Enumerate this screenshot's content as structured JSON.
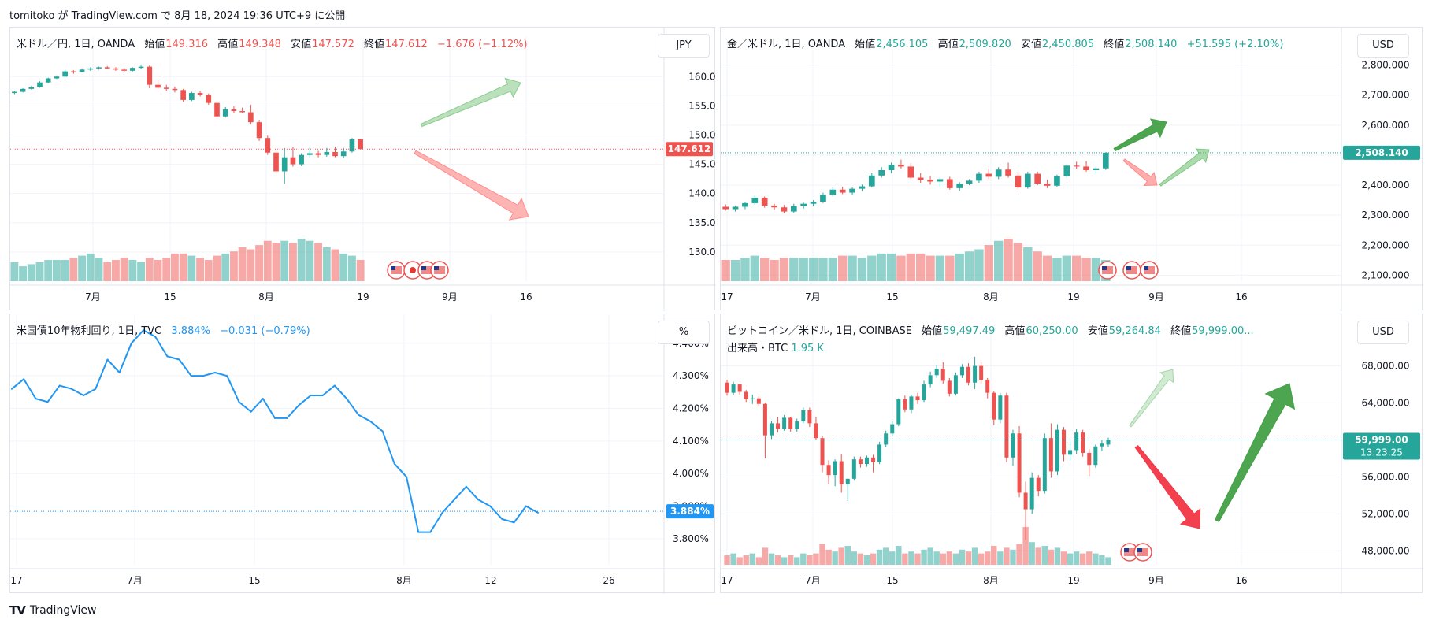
{
  "header": {
    "publish_line": "tomitoko が TradingView.com で 8月 18, 2024 19:36 UTC+9 に公開"
  },
  "footer": {
    "brand": "TradingView"
  },
  "colors": {
    "up": "#26a69a",
    "down": "#ef5350",
    "line": "#2196f3",
    "grid": "#f0f3fa",
    "arrow_green": "#43a047",
    "arrow_red": "#f23645"
  },
  "panels": [
    {
      "id": "usdjpy",
      "legend": {
        "symbol": "米ドル／円, 1日, OANDA",
        "open_label": "始値",
        "open": "149.316",
        "high_label": "高値",
        "high": "149.348",
        "low_label": "安値",
        "low": "147.572",
        "close_label": "終値",
        "close": "147.612",
        "change": "−1.676 (−1.12%)",
        "tone": "down"
      },
      "currency": "JPY",
      "price_badge": "147.612",
      "badge_tone": "down",
      "y_ticks": [
        "160.000",
        "155.000",
        "150.000",
        "145.000",
        "140.000",
        "135.000",
        "130.000"
      ],
      "x_ticks": [
        "7月",
        "15",
        "8月",
        "19",
        "9月",
        "16"
      ]
    },
    {
      "id": "xauusd",
      "legend": {
        "symbol": "金／米ドル, 1日, OANDA",
        "open_label": "始値",
        "open": "2,456.105",
        "high_label": "高値",
        "high": "2,509.820",
        "low_label": "安値",
        "low": "2,450.805",
        "close_label": "終値",
        "close": "2,508.140",
        "change": "+51.595 (+2.10%)",
        "tone": "up"
      },
      "currency": "USD",
      "price_badge": "2,508.140",
      "badge_tone": "up",
      "y_ticks": [
        "2,800.000",
        "2,700.000",
        "2,600.000",
        "2,500.000",
        "2,400.000",
        "2,300.000",
        "2,200.000",
        "2,100.000"
      ],
      "x_ticks": [
        "17",
        "7月",
        "15",
        "8月",
        "19",
        "9月",
        "16"
      ]
    },
    {
      "id": "us10y",
      "legend": {
        "symbol": "米国債10年物利回り, 1日, TVC",
        "value": "3.884%",
        "change": "−0.031 (−0.79%)",
        "tone": "line"
      },
      "currency": "%",
      "price_badge": "3.884%",
      "badge_tone": "line",
      "y_ticks": [
        "4.400%",
        "4.300%",
        "4.200%",
        "4.100%",
        "4.000%",
        "3.900%",
        "3.800%"
      ],
      "x_ticks": [
        "17",
        "7月",
        "15",
        "8月",
        "12",
        "26"
      ]
    },
    {
      "id": "btcusd",
      "legend": {
        "symbol": "ビットコイン／米ドル, 1日, COINBASE",
        "open_label": "始値",
        "open": "59,497.49",
        "high_label": "高値",
        "high": "60,250.00",
        "low_label": "安値",
        "low": "59,264.84",
        "close_label": "終値",
        "close": "59,999.00...",
        "volume_label": "出来高・BTC",
        "volume": "1.95 K",
        "tone": "up"
      },
      "currency": "USD",
      "price_badge": "59,999.00",
      "badge_sub": "13:23:25",
      "badge_tone": "up",
      "y_ticks": [
        "68,000.00",
        "64,000.00",
        "60,000.00",
        "56,000.00",
        "52,000.00",
        "48,000.00"
      ],
      "x_ticks": [
        "17",
        "7月",
        "15",
        "8月",
        "19",
        "9月",
        "16"
      ]
    }
  ],
  "chart_data": [
    {
      "type": "candlestick",
      "symbol": "USD/JPY",
      "ylim": [
        125,
        163
      ],
      "last": 147.612,
      "candles": [
        [
          157.2,
          157.6,
          157.0,
          157.4
        ],
        [
          157.4,
          158.0,
          157.3,
          157.9
        ],
        [
          157.9,
          158.4,
          157.8,
          158.2
        ],
        [
          158.2,
          159.2,
          158.1,
          159.0
        ],
        [
          159.0,
          159.8,
          158.9,
          159.7
        ],
        [
          159.7,
          160.2,
          159.6,
          160.0
        ],
        [
          160.0,
          161.2,
          159.9,
          160.9
        ],
        [
          160.9,
          161.1,
          160.5,
          160.8
        ],
        [
          160.8,
          161.4,
          160.7,
          161.2
        ],
        [
          161.2,
          161.6,
          161.0,
          161.4
        ],
        [
          161.4,
          161.7,
          161.2,
          161.6
        ],
        [
          161.6,
          161.8,
          161.3,
          161.4
        ],
        [
          161.4,
          161.6,
          161.0,
          161.2
        ],
        [
          161.2,
          161.5,
          160.8,
          161.0
        ],
        [
          161.0,
          161.6,
          160.9,
          161.5
        ],
        [
          161.5,
          161.9,
          161.3,
          161.7
        ],
        [
          161.7,
          161.9,
          158.0,
          158.6
        ],
        [
          158.6,
          159.4,
          157.8,
          158.1
        ],
        [
          158.1,
          158.6,
          157.6,
          157.9
        ],
        [
          157.9,
          158.3,
          157.3,
          157.7
        ],
        [
          157.7,
          157.9,
          155.7,
          156.0
        ],
        [
          156.0,
          157.4,
          155.8,
          157.2
        ],
        [
          157.2,
          157.6,
          156.6,
          156.9
        ],
        [
          156.9,
          157.1,
          155.2,
          155.5
        ],
        [
          155.5,
          155.8,
          152.8,
          153.2
        ],
        [
          153.2,
          154.8,
          153.0,
          154.4
        ],
        [
          154.4,
          154.9,
          153.8,
          154.1
        ],
        [
          154.1,
          154.7,
          153.7,
          153.9
        ],
        [
          153.9,
          155.2,
          151.8,
          152.2
        ],
        [
          152.2,
          152.6,
          149.0,
          149.5
        ],
        [
          149.5,
          149.9,
          146.6,
          147.0
        ],
        [
          147.0,
          147.3,
          143.4,
          143.8
        ],
        [
          143.8,
          147.8,
          141.7,
          146.2
        ],
        [
          146.2,
          147.9,
          144.6,
          145.0
        ],
        [
          145.0,
          146.9,
          144.7,
          146.6
        ],
        [
          146.6,
          147.9,
          146.2,
          146.9
        ],
        [
          146.9,
          147.3,
          146.2,
          146.6
        ],
        [
          146.6,
          147.8,
          146.3,
          147.1
        ],
        [
          147.1,
          147.9,
          146.2,
          146.4
        ],
        [
          146.4,
          147.8,
          146.1,
          147.2
        ],
        [
          147.2,
          149.5,
          147.0,
          149.3
        ],
        [
          149.3,
          149.35,
          147.57,
          147.61
        ]
      ],
      "volume_relative": [
        0.45,
        0.35,
        0.4,
        0.45,
        0.5,
        0.5,
        0.5,
        0.55,
        0.6,
        0.65,
        0.55,
        0.45,
        0.5,
        0.55,
        0.5,
        0.45,
        0.55,
        0.5,
        0.55,
        0.65,
        0.65,
        0.6,
        0.55,
        0.5,
        0.6,
        0.65,
        0.7,
        0.8,
        0.75,
        0.85,
        0.95,
        0.9,
        0.95,
        0.9,
        1.0,
        0.95,
        0.9,
        0.8,
        0.75,
        0.65,
        0.6,
        0.5
      ],
      "annotations": "green arrow up-right, red arrow down-right"
    },
    {
      "type": "candlestick",
      "symbol": "XAU/USD",
      "ylim": [
        2080,
        2820
      ],
      "last": 2508.14,
      "candles": [
        [
          2328,
          2336,
          2315,
          2320
        ],
        [
          2320,
          2332,
          2312,
          2328
        ],
        [
          2328,
          2345,
          2320,
          2340
        ],
        [
          2340,
          2365,
          2335,
          2358
        ],
        [
          2358,
          2362,
          2325,
          2332
        ],
        [
          2332,
          2338,
          2318,
          2326
        ],
        [
          2326,
          2334,
          2306,
          2312
        ],
        [
          2312,
          2338,
          2308,
          2330
        ],
        [
          2330,
          2342,
          2322,
          2338
        ],
        [
          2338,
          2350,
          2330,
          2345
        ],
        [
          2345,
          2375,
          2340,
          2368
        ],
        [
          2368,
          2392,
          2362,
          2385
        ],
        [
          2385,
          2395,
          2370,
          2375
        ],
        [
          2375,
          2392,
          2368,
          2388
        ],
        [
          2388,
          2402,
          2380,
          2396
        ],
        [
          2396,
          2440,
          2392,
          2432
        ],
        [
          2432,
          2460,
          2425,
          2450
        ],
        [
          2450,
          2475,
          2440,
          2468
        ],
        [
          2468,
          2485,
          2455,
          2462
        ],
        [
          2462,
          2472,
          2420,
          2425
        ],
        [
          2425,
          2440,
          2408,
          2418
        ],
        [
          2418,
          2430,
          2402,
          2412
        ],
        [
          2412,
          2425,
          2395,
          2420
        ],
        [
          2420,
          2428,
          2385,
          2390
        ],
        [
          2390,
          2410,
          2380,
          2405
        ],
        [
          2405,
          2420,
          2400,
          2415
        ],
        [
          2415,
          2445,
          2408,
          2438
        ],
        [
          2438,
          2455,
          2420,
          2428
        ],
        [
          2428,
          2460,
          2420,
          2452
        ],
        [
          2452,
          2475,
          2425,
          2432
        ],
        [
          2432,
          2445,
          2385,
          2392
        ],
        [
          2392,
          2445,
          2388,
          2438
        ],
        [
          2438,
          2445,
          2400,
          2405
        ],
        [
          2405,
          2418,
          2390,
          2398
        ],
        [
          2398,
          2435,
          2395,
          2430
        ],
        [
          2430,
          2470,
          2425,
          2465
        ],
        [
          2465,
          2478,
          2455,
          2462
        ],
        [
          2462,
          2480,
          2445,
          2450
        ],
        [
          2450,
          2462,
          2440,
          2456
        ],
        [
          2456,
          2509.8,
          2450.8,
          2508.1
        ]
      ],
      "volume_relative": [
        0.5,
        0.5,
        0.55,
        0.6,
        0.55,
        0.5,
        0.55,
        0.55,
        0.55,
        0.55,
        0.55,
        0.55,
        0.6,
        0.6,
        0.55,
        0.6,
        0.65,
        0.65,
        0.6,
        0.65,
        0.65,
        0.6,
        0.6,
        0.6,
        0.65,
        0.7,
        0.75,
        0.85,
        0.95,
        1.0,
        0.9,
        0.8,
        0.7,
        0.6,
        0.55,
        0.6,
        0.6,
        0.55,
        0.55,
        0.5
      ],
      "annotations": "green arrows up-right, red arrow down-right"
    },
    {
      "type": "line",
      "symbol": "US10Y",
      "ylim": [
        3.72,
        4.46
      ],
      "last": 3.884,
      "values": [
        4.26,
        4.29,
        4.23,
        4.22,
        4.27,
        4.26,
        4.24,
        4.26,
        4.35,
        4.31,
        4.4,
        4.44,
        4.42,
        4.36,
        4.35,
        4.3,
        4.3,
        4.31,
        4.3,
        4.22,
        4.19,
        4.23,
        4.17,
        4.17,
        4.21,
        4.24,
        4.24,
        4.27,
        4.23,
        4.18,
        4.16,
        4.13,
        4.03,
        3.99,
        3.82,
        3.82,
        3.88,
        3.92,
        3.96,
        3.92,
        3.9,
        3.86,
        3.85,
        3.9,
        3.88
      ],
      "annotations": "dotted last-value line"
    },
    {
      "type": "candlestick",
      "symbol": "BTC/USD",
      "ylim": [
        46500,
        69500
      ],
      "last": 59999.0,
      "candles": [
        [
          66200,
          66500,
          64800,
          65100
        ],
        [
          65100,
          66300,
          64900,
          66000
        ],
        [
          66000,
          66100,
          64900,
          65200
        ],
        [
          65200,
          65400,
          64100,
          64400
        ],
        [
          64400,
          64900,
          63900,
          64500
        ],
        [
          64500,
          64700,
          63600,
          63900
        ],
        [
          63900,
          64000,
          58000,
          60500
        ],
        [
          60500,
          62000,
          60100,
          61800
        ],
        [
          61800,
          62500,
          60800,
          61200
        ],
        [
          61200,
          62700,
          61000,
          62400
        ],
        [
          62400,
          62500,
          60900,
          61200
        ],
        [
          61200,
          62300,
          60900,
          62000
        ],
        [
          62000,
          63500,
          61800,
          63200
        ],
        [
          63200,
          63500,
          61400,
          61800
        ],
        [
          61800,
          62500,
          60000,
          60200
        ],
        [
          60200,
          60400,
          56500,
          57300
        ],
        [
          57300,
          57800,
          55200,
          56200
        ],
        [
          56200,
          57900,
          55000,
          57700
        ],
        [
          57700,
          58500,
          54300,
          55200
        ],
        [
          55200,
          55800,
          53400,
          55800
        ],
        [
          55800,
          58200,
          55600,
          57900
        ],
        [
          57900,
          58200,
          57000,
          57400
        ],
        [
          57400,
          58300,
          57100,
          58100
        ],
        [
          58100,
          58400,
          56500,
          57600
        ],
        [
          57600,
          59800,
          57400,
          59500
        ],
        [
          59500,
          61000,
          59200,
          60700
        ],
        [
          60700,
          62000,
          60400,
          61700
        ],
        [
          61700,
          64500,
          61500,
          64400
        ],
        [
          64400,
          64800,
          63000,
          63300
        ],
        [
          63300,
          64900,
          62900,
          64700
        ],
        [
          64700,
          65100,
          63900,
          64300
        ],
        [
          64300,
          66400,
          64100,
          66000
        ],
        [
          66000,
          67400,
          65700,
          67000
        ],
        [
          67000,
          68100,
          66700,
          67700
        ],
        [
          67700,
          68400,
          66100,
          66400
        ],
        [
          66400,
          66700,
          64700,
          65000
        ],
        [
          65000,
          67300,
          64800,
          67000
        ],
        [
          67000,
          68200,
          66700,
          67900
        ],
        [
          67900,
          68300,
          65900,
          66200
        ],
        [
          66200,
          69000,
          65500,
          68000
        ],
        [
          68000,
          68400,
          66100,
          66500
        ],
        [
          66500,
          66700,
          64500,
          65100
        ],
        [
          65100,
          65300,
          61600,
          62200
        ],
        [
          62200,
          65100,
          61800,
          64800
        ],
        [
          64800,
          65100,
          57600,
          58100
        ],
        [
          58100,
          61100,
          57200,
          60700
        ],
        [
          60700,
          61500,
          53800,
          54300
        ],
        [
          54300,
          55500,
          49200,
          52500
        ],
        [
          52500,
          56500,
          52000,
          55900
        ],
        [
          55900,
          56200,
          53900,
          54500
        ],
        [
          54500,
          60700,
          54200,
          60200
        ],
        [
          60200,
          61800,
          55900,
          56600
        ],
        [
          56600,
          61700,
          56200,
          61100
        ],
        [
          61100,
          61400,
          57700,
          58400
        ],
        [
          58400,
          59800,
          57800,
          58900
        ],
        [
          58900,
          61200,
          58500,
          60800
        ],
        [
          60800,
          61100,
          58200,
          58600
        ],
        [
          58600,
          59000,
          56100,
          57300
        ],
        [
          57300,
          59500,
          57000,
          59300
        ],
        [
          59300,
          60000,
          58800,
          59600
        ],
        [
          59500,
          60250,
          59265,
          59999
        ]
      ],
      "volume_relative": [
        0.25,
        0.3,
        0.2,
        0.25,
        0.3,
        0.2,
        0.45,
        0.3,
        0.25,
        0.2,
        0.25,
        0.2,
        0.3,
        0.25,
        0.3,
        0.55,
        0.4,
        0.35,
        0.45,
        0.5,
        0.35,
        0.3,
        0.25,
        0.3,
        0.4,
        0.45,
        0.35,
        0.5,
        0.3,
        0.35,
        0.3,
        0.4,
        0.45,
        0.35,
        0.3,
        0.35,
        0.3,
        0.4,
        0.35,
        0.45,
        0.3,
        0.35,
        0.5,
        0.35,
        0.45,
        0.4,
        0.55,
        1.0,
        0.6,
        0.45,
        0.5,
        0.4,
        0.45,
        0.35,
        0.3,
        0.35,
        0.3,
        0.35,
        0.3,
        0.25,
        0.2
      ],
      "annotations": "faded green arrow up-right, red arrow down-right, large green arrow up-right"
    }
  ]
}
